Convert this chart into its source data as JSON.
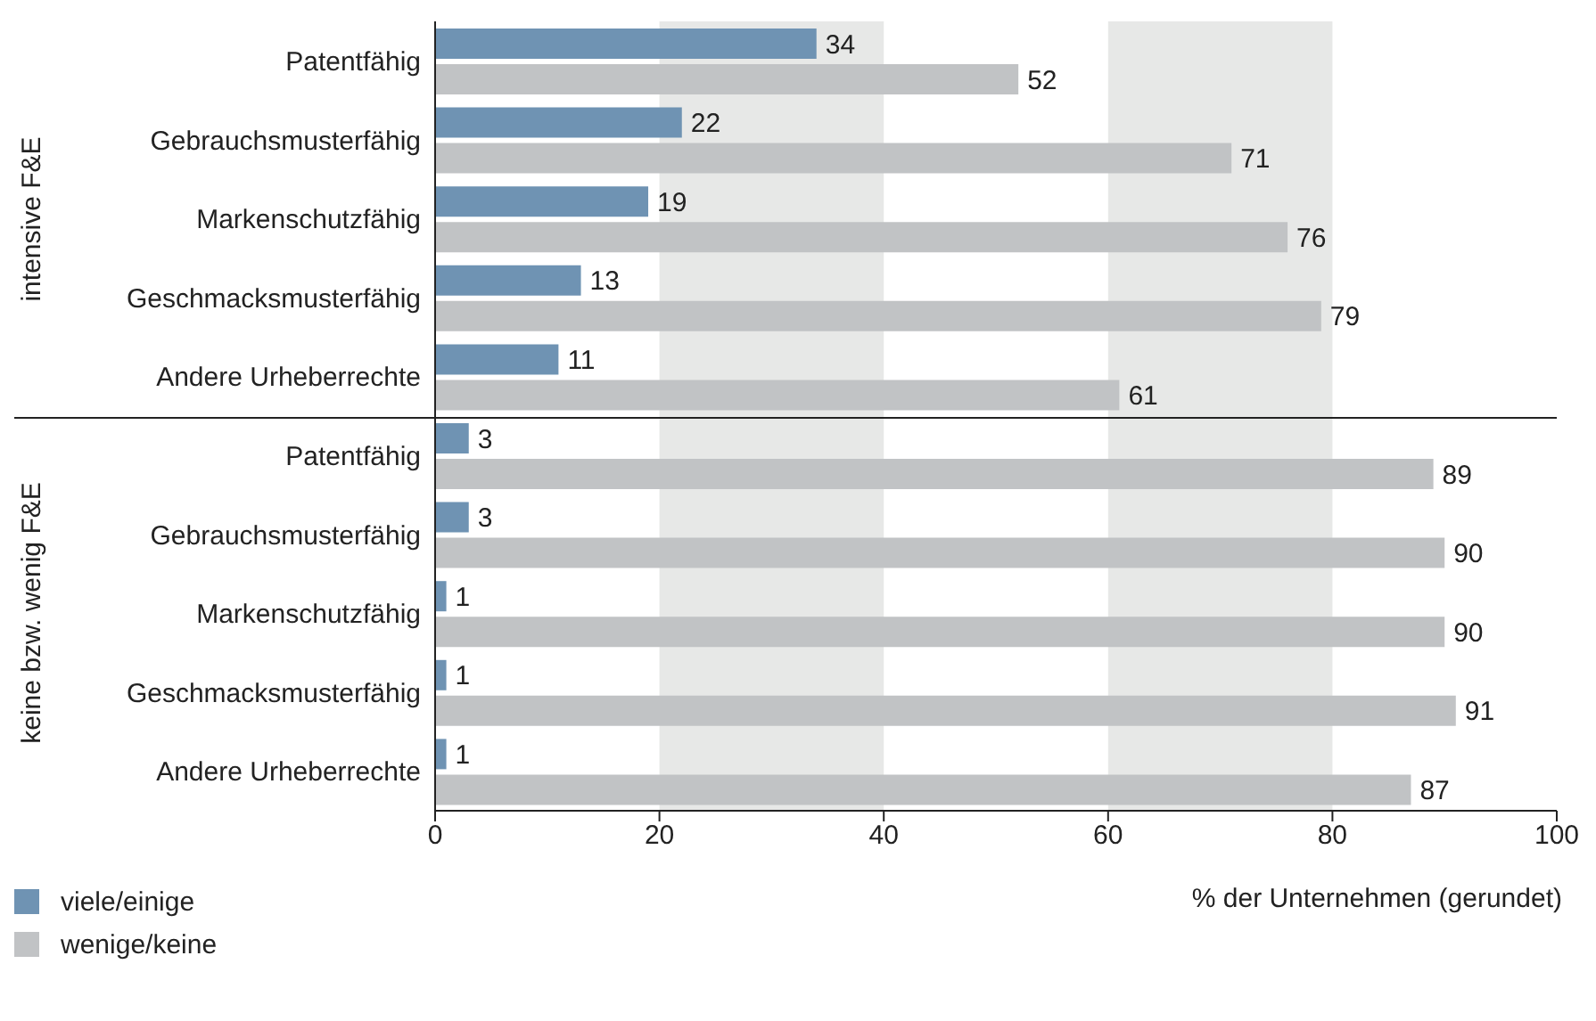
{
  "chart_data": {
    "type": "bar",
    "orientation": "horizontal",
    "categories": [
      "Patentfähig",
      "Gebrauchsmusterfähig",
      "Markenschutzfähig",
      "Geschmacksmusterfähig",
      "Andere Urheberrechte",
      "Patentfähig",
      "Gebrauchsmusterfähig",
      "Markenschutzfähig",
      "Geschmacksmusterfähig",
      "Andere Urheberrechte"
    ],
    "series": [
      {
        "name": "viele/einige",
        "color": "#6f93b3",
        "values": [
          34,
          22,
          19,
          13,
          11,
          3,
          3,
          1,
          1,
          1
        ]
      },
      {
        "name": "wenige/keine",
        "color": "#c1c3c5",
        "values": [
          52,
          71,
          76,
          79,
          61,
          89,
          90,
          90,
          91,
          87
        ]
      }
    ],
    "xlim": [
      0,
      100
    ],
    "xticks": [
      0,
      20,
      40,
      60,
      80,
      100
    ],
    "xlabel": "% der Unternehmen (gerundet)",
    "bands": [
      {
        "axis": "x",
        "from": 20,
        "to": 40,
        "color": "#e7e8e7"
      },
      {
        "axis": "x",
        "from": 60,
        "to": 80,
        "color": "#e7e8e7"
      }
    ],
    "annotations": [
      "intensive F&E",
      "keine bzw. wenig F&E"
    ],
    "data_labels": true,
    "legend": "bottom left"
  }
}
